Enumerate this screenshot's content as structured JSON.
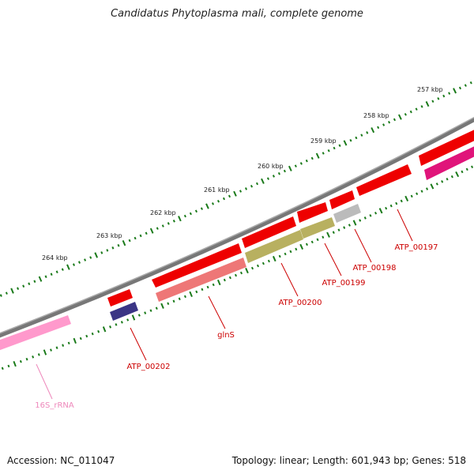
{
  "title": "Candidatus Phytoplasma mali, complete genome",
  "footer": {
    "accession": "Accession: NC_011047",
    "stats": "Topology: linear; Length: 601,943 bp; Genes: 518"
  },
  "ticks": [
    {
      "label": "257 kbp"
    },
    {
      "label": "258 kbp"
    },
    {
      "label": "259 kbp"
    },
    {
      "label": "260 kbp"
    },
    {
      "label": "261 kbp"
    },
    {
      "label": "262 kbp"
    },
    {
      "label": "263 kbp"
    },
    {
      "label": "264 kbp"
    }
  ],
  "genes": [
    {
      "label": "ATP_00197"
    },
    {
      "label": "ATP_00198"
    },
    {
      "label": "ATP_00199"
    },
    {
      "label": "ATP_00200"
    },
    {
      "label": "glnS"
    },
    {
      "label": "ATP_00202"
    },
    {
      "label": "16S_rRNA"
    }
  ],
  "colors": {
    "backbone": "#777777",
    "ruler": "#1a7a1a",
    "cds_forward": "#ee0000",
    "gene_label": "#cc0000",
    "rrna": "#ff99cc",
    "rrna_label": "#ee88bb"
  }
}
